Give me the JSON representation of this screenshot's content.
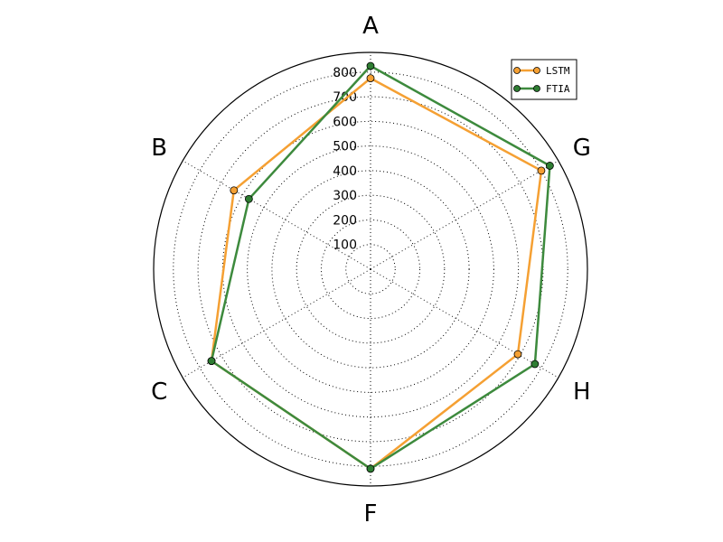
{
  "chart_data": {
    "type": "radar",
    "axes": [
      "A",
      "G",
      "H",
      "F",
      "C",
      "B"
    ],
    "rlim": [
      0,
      880
    ],
    "r_ticks": [
      100,
      200,
      300,
      400,
      500,
      600,
      700,
      800
    ],
    "grid": true,
    "legend_position": "top-right",
    "series": [
      {
        "name": "LSTM",
        "color": "#f5a033",
        "marker_color": "#f5a033",
        "values": [
          775,
          800,
          690,
          810,
          745,
          640
        ]
      },
      {
        "name": "FTIA",
        "color": "#3d8a3d",
        "marker_color": "#2e7d32",
        "values": [
          825,
          840,
          770,
          810,
          745,
          570
        ]
      }
    ]
  }
}
